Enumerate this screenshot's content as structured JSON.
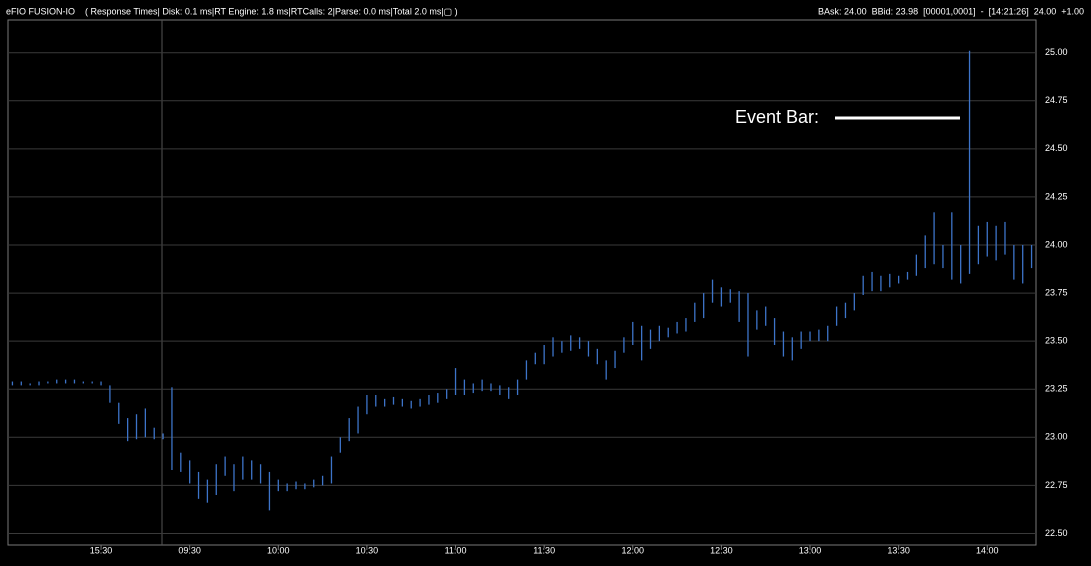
{
  "header": {
    "left": "eFIO FUSION-IO    ( Response Times| Disk: 0.1 ms|RT Engine: 1.8 ms|RTCalls: 2|Parse: 0.0 ms|Total 2.0 ms|▢ )",
    "right": "BAsk: 24.00  BBid: 23.98  [00001,0001]  -  [14:21:26]  24.00  +1.00"
  },
  "chart_data": {
    "type": "hlc",
    "annotation": "Event Bar:",
    "color": "#3d74c9",
    "categories": [
      null,
      null,
      null,
      null,
      null,
      null,
      null,
      null,
      null,
      null,
      "15:30",
      null,
      null,
      null,
      null,
      null,
      null,
      null,
      null,
      null,
      "09:30",
      null,
      null,
      null,
      null,
      null,
      null,
      null,
      null,
      null,
      "10:00",
      null,
      null,
      null,
      null,
      null,
      null,
      null,
      null,
      null,
      "10:30",
      null,
      null,
      null,
      null,
      null,
      null,
      null,
      null,
      null,
      "11:00",
      null,
      null,
      null,
      null,
      null,
      null,
      null,
      null,
      null,
      "11:30",
      null,
      null,
      null,
      null,
      null,
      null,
      null,
      null,
      null,
      "12:00",
      null,
      null,
      null,
      null,
      null,
      null,
      null,
      null,
      null,
      "12:30",
      null,
      null,
      null,
      null,
      null,
      null,
      null,
      null,
      null,
      "13:00",
      null,
      null,
      null,
      null,
      null,
      null,
      null,
      null,
      null,
      "13:30",
      null,
      null,
      null,
      null,
      null,
      null,
      null,
      null,
      null,
      "14:00",
      null,
      null,
      null,
      null,
      null
    ],
    "high": [
      23.29,
      23.29,
      23.28,
      23.29,
      23.29,
      23.3,
      23.3,
      23.3,
      23.29,
      23.29,
      23.29,
      23.27,
      23.18,
      23.1,
      23.12,
      23.15,
      23.05,
      23.02,
      23.26,
      22.92,
      22.88,
      22.82,
      22.78,
      22.86,
      22.9,
      22.86,
      22.9,
      22.88,
      22.86,
      22.82,
      22.78,
      22.76,
      22.77,
      22.76,
      22.78,
      22.8,
      22.9,
      23.0,
      23.1,
      23.16,
      23.22,
      23.22,
      23.2,
      23.21,
      23.2,
      23.19,
      23.2,
      23.22,
      23.23,
      23.25,
      23.36,
      23.3,
      23.28,
      23.3,
      23.28,
      23.27,
      23.26,
      23.3,
      23.4,
      23.44,
      23.48,
      23.52,
      23.5,
      23.53,
      23.52,
      23.5,
      23.46,
      23.4,
      23.45,
      23.52,
      23.6,
      23.58,
      23.56,
      23.58,
      23.57,
      23.6,
      23.62,
      23.7,
      23.75,
      23.82,
      23.78,
      23.77,
      23.76,
      23.75,
      23.66,
      23.68,
      23.62,
      23.55,
      23.52,
      23.55,
      23.55,
      23.56,
      23.58,
      23.68,
      23.7,
      23.75,
      23.84,
      23.86,
      23.84,
      23.85,
      23.84,
      23.86,
      23.95,
      24.05,
      24.17,
      24.0,
      24.17,
      24.0,
      25.01,
      24.1,
      24.12,
      24.1,
      24.12,
      24.0,
      24.0,
      24.0
    ],
    "low": [
      23.27,
      23.27,
      23.27,
      23.27,
      23.28,
      23.28,
      23.28,
      23.28,
      23.28,
      23.28,
      23.27,
      23.18,
      23.07,
      22.98,
      22.99,
      23.0,
      22.99,
      22.99,
      22.83,
      22.82,
      22.76,
      22.68,
      22.66,
      22.7,
      22.8,
      22.72,
      22.78,
      22.78,
      22.76,
      22.62,
      22.72,
      22.72,
      22.73,
      22.73,
      22.74,
      22.75,
      22.76,
      22.92,
      22.98,
      23.02,
      23.12,
      23.16,
      23.16,
      23.17,
      23.16,
      23.15,
      23.16,
      23.17,
      23.18,
      23.2,
      23.22,
      23.22,
      23.23,
      23.24,
      23.24,
      23.22,
      23.2,
      23.22,
      23.3,
      23.38,
      23.38,
      23.42,
      23.44,
      23.45,
      23.46,
      23.42,
      23.38,
      23.3,
      23.36,
      23.44,
      23.48,
      23.4,
      23.46,
      23.5,
      23.52,
      23.54,
      23.55,
      23.6,
      23.62,
      23.7,
      23.68,
      23.7,
      23.6,
      23.42,
      23.56,
      23.58,
      23.48,
      23.42,
      23.4,
      23.46,
      23.5,
      23.5,
      23.5,
      23.58,
      23.62,
      23.66,
      23.74,
      23.76,
      23.76,
      23.78,
      23.8,
      23.82,
      23.84,
      23.88,
      23.9,
      23.88,
      23.82,
      23.8,
      23.85,
      23.9,
      23.94,
      23.92,
      23.95,
      23.82,
      23.8,
      23.88
    ],
    "ylim": [
      22.44,
      25.17
    ],
    "yticks": [
      {
        "value": 22.5,
        "label": "22.50"
      },
      {
        "value": 22.75,
        "label": "22.75"
      },
      {
        "value": 23,
        "label": "23.00"
      },
      {
        "value": 23.25,
        "label": "23.25"
      },
      {
        "value": 23.5,
        "label": "23.50"
      },
      {
        "value": 23.75,
        "label": "23.75"
      },
      {
        "value": 24,
        "label": "24.00"
      },
      {
        "value": 24.25,
        "label": "24.25"
      },
      {
        "value": 24.5,
        "label": "24.50"
      },
      {
        "value": 24.75,
        "label": "24.75"
      },
      {
        "value": 25,
        "label": "25.00"
      }
    ],
    "grid": true
  }
}
